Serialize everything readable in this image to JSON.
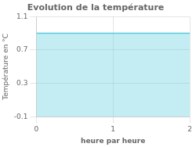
{
  "chart_data": {
    "type": "area",
    "title": "Evolution de la température",
    "xlabel": "heure par heure",
    "ylabel": "Température en °C",
    "x": [
      0,
      2
    ],
    "values": [
      0.9,
      0.9
    ],
    "color": "#55ccdd",
    "xlim": [
      0,
      2
    ],
    "ylim": [
      -0.1,
      1.1
    ],
    "xticks": [
      0,
      1,
      2
    ],
    "yticks": [
      -0.1,
      0.3,
      0.7,
      1.1
    ],
    "grid": true
  }
}
